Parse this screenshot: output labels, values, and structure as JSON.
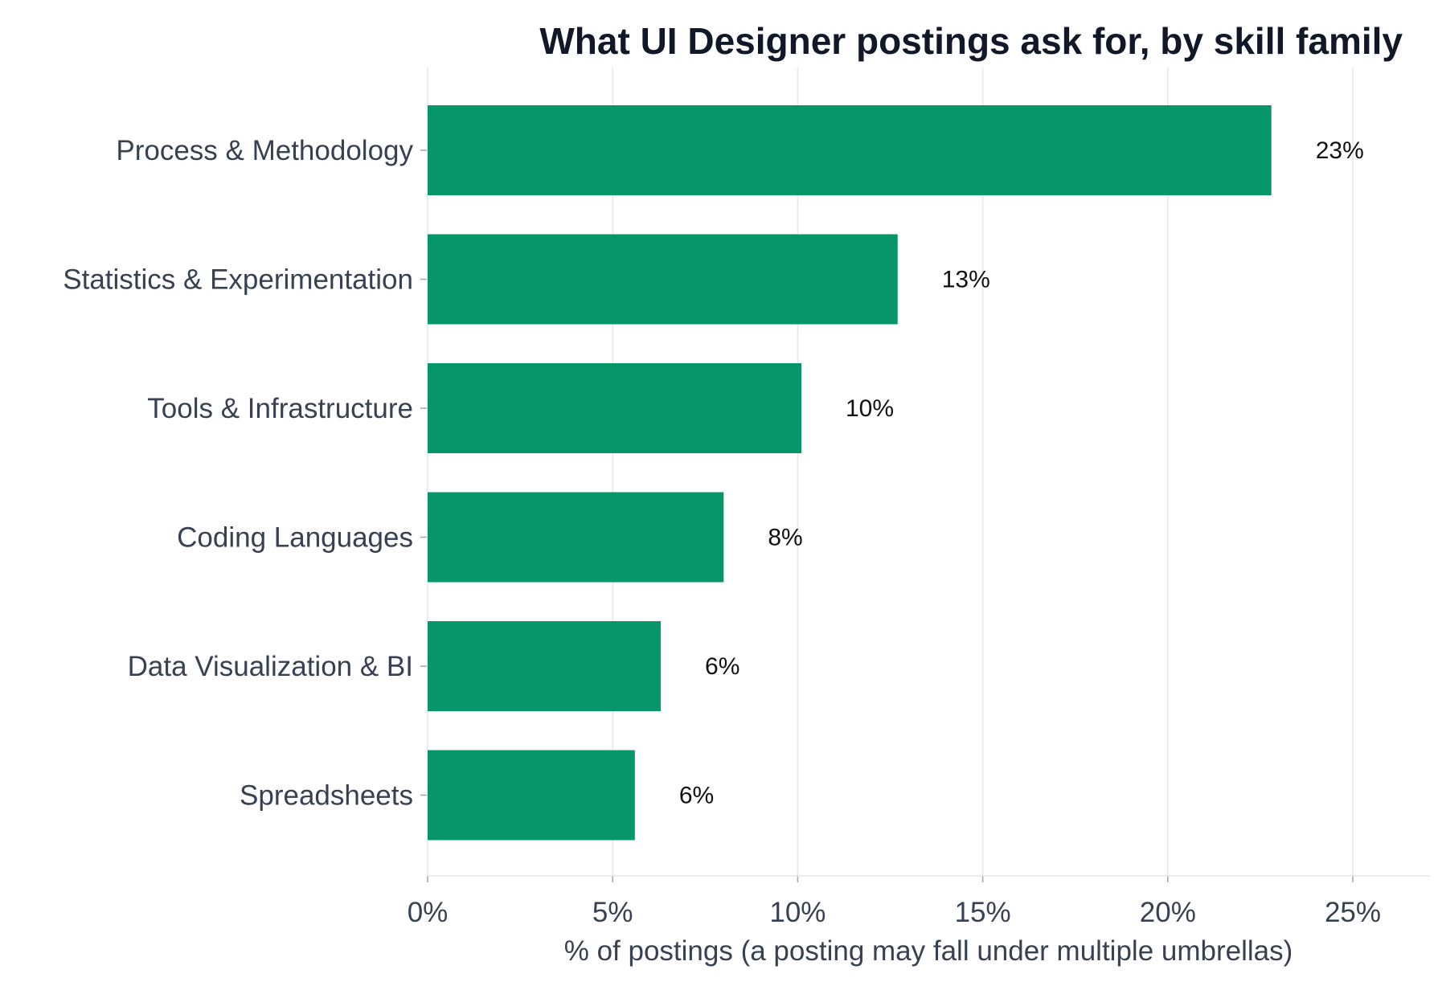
{
  "chart_data": {
    "type": "bar",
    "orientation": "horizontal",
    "title": "What UI Designer postings ask for, by skill family",
    "xlabel": "% of postings (a posting may fall under multiple umbrellas)",
    "ylabel": "",
    "categories": [
      "Process & Methodology",
      "Statistics & Experimentation",
      "Tools & Infrastructure",
      "Coding Languages",
      "Data Visualization & BI",
      "Spreadsheets"
    ],
    "values": [
      22.8,
      12.7,
      10.1,
      8.0,
      6.3,
      5.6
    ],
    "data_labels": [
      "23%",
      "13%",
      "10%",
      "8%",
      "6%",
      "6%"
    ],
    "xlim": [
      0,
      27
    ],
    "xticks": [
      0,
      5,
      10,
      15,
      20,
      25
    ],
    "xtick_labels": [
      "0%",
      "5%",
      "10%",
      "15%",
      "20%",
      "25%"
    ],
    "grid": "vertical",
    "bar_color": "#069669"
  }
}
